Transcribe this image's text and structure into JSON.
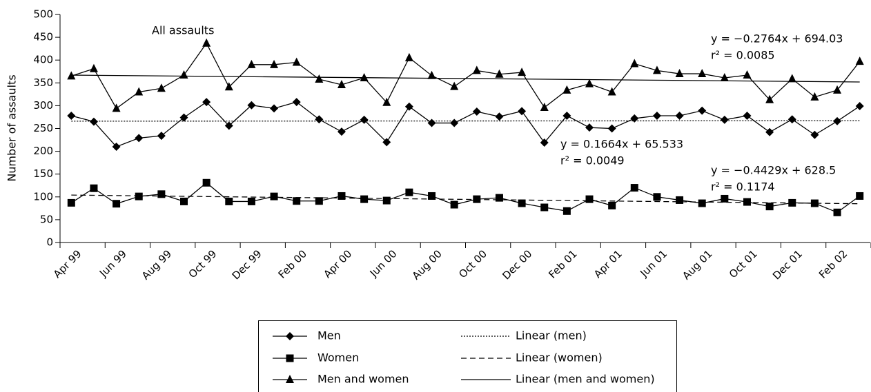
{
  "chart_data": {
    "type": "line",
    "ylabel": "Number of assaults",
    "categories": [
      "Apr 99",
      null,
      "Jun 99",
      null,
      "Aug 99",
      null,
      "Oct 99",
      null,
      "Dec 99",
      null,
      "Feb 00",
      null,
      "Apr 00",
      null,
      "Jun 00",
      null,
      "Aug 00",
      null,
      "Oct 00",
      null,
      "Dec 00",
      null,
      "Feb 01",
      null,
      "Apr 01",
      null,
      "Jun 01",
      null,
      "Aug 01",
      null,
      "Oct 01",
      null,
      "Dec 01",
      null,
      "Feb 02",
      null
    ],
    "series": [
      {
        "name": "Men",
        "color": "#000000",
        "marker": "diamond",
        "values": [
          278,
          265,
          210,
          229,
          234,
          274,
          308,
          256,
          301,
          294,
          308,
          270,
          243,
          269,
          220,
          298,
          262,
          262,
          287,
          276,
          288,
          219,
          278,
          252,
          250,
          272,
          278,
          278,
          289,
          269,
          278,
          242,
          270,
          236,
          266,
          299
        ]
      },
      {
        "name": "Women",
        "color": "#000000",
        "marker": "square",
        "values": [
          87,
          119,
          85,
          101,
          106,
          90,
          131,
          90,
          90,
          101,
          91,
          91,
          102,
          95,
          92,
          110,
          102,
          83,
          95,
          98,
          86,
          77,
          69,
          95,
          81,
          120,
          100,
          93,
          86,
          96,
          89,
          79,
          87,
          86,
          66,
          102
        ]
      },
      {
        "name": "Men and women",
        "color": "#000000",
        "marker": "triangle",
        "values": [
          365,
          381,
          294,
          330,
          338,
          367,
          437,
          341,
          390,
          390,
          395,
          358,
          346,
          361,
          307,
          405,
          366,
          342,
          377,
          369,
          373,
          296,
          334,
          348,
          330,
          392,
          377,
          370,
          370,
          361,
          367,
          313,
          359,
          319,
          334,
          397
        ]
      }
    ],
    "trendlines": [
      {
        "name": "Linear (men)",
        "dash": "dotted",
        "values": [
          266,
          267
        ],
        "equation": "y = 0.1664x + 65.533",
        "r2": "r² = 0.0049"
      },
      {
        "name": "Linear (women)",
        "dash": "dashed",
        "values": [
          104,
          85
        ],
        "equation": "y = −0.4429x + 628.5",
        "r2": "r² = 0.1174"
      },
      {
        "name": "Linear (men and women)",
        "dash": "solid",
        "values": [
          367,
          352
        ],
        "equation": "y = −0.2764x + 694.03",
        "r2": "r² = 0.0085"
      }
    ],
    "annotation": "All assaults",
    "ylim": [
      0,
      500
    ],
    "yticks": [
      0,
      50,
      100,
      150,
      200,
      250,
      300,
      350,
      400,
      450,
      500
    ]
  }
}
